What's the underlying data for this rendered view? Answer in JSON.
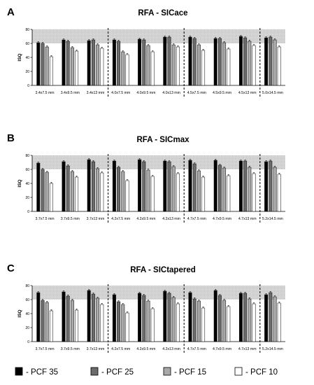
{
  "legend": [
    {
      "label": "- PCF 35",
      "color": "#000000"
    },
    {
      "label": "- PCF 25",
      "color": "#6b6b6b"
    },
    {
      "label": "- PCF 15",
      "color": "#a9a9a9"
    },
    {
      "label": "- PCF 10",
      "color": "#ffffff"
    }
  ],
  "chart_data": [
    {
      "type": "bar",
      "panel": "A",
      "title": "RFA - SICace",
      "ylabel": "ISQ",
      "ylim": [
        0,
        80
      ],
      "yticks": [
        0,
        20,
        40,
        60,
        80
      ],
      "shaded_band": [
        60,
        80
      ],
      "dashed_separators_after": [
        2,
        5,
        8
      ],
      "categories": [
        "3.4x7.5 mm",
        "3.4x9.5 mm",
        "3.4x13 mm",
        "4.0x7.5 mm",
        "4.0x9.5 mm",
        "4.0x13 mm",
        "4.5x7.5 mm",
        "4.5x9.5 mm",
        "4.5x13 mm",
        "5.0x14.5 mm"
      ],
      "series": [
        {
          "name": "- PCF 35",
          "values": [
            61,
            65,
            64,
            65,
            66,
            69,
            69,
            67,
            70,
            68
          ]
        },
        {
          "name": "- PCF 25",
          "values": [
            60,
            63,
            65,
            63,
            65,
            69,
            67,
            67,
            68,
            69
          ]
        },
        {
          "name": "- PCF 15",
          "values": [
            55,
            54,
            58,
            48,
            57,
            58,
            58,
            61,
            63,
            65
          ]
        },
        {
          "name": "- PCF 10",
          "values": [
            41,
            49,
            53,
            44,
            48,
            55,
            50,
            52,
            57,
            55
          ]
        }
      ]
    },
    {
      "type": "bar",
      "panel": "B",
      "title": "RFA - SICmax",
      "ylabel": "ISQ",
      "ylim": [
        0,
        80
      ],
      "yticks": [
        0,
        20,
        40,
        60,
        80
      ],
      "shaded_band": [
        60,
        80
      ],
      "dashed_separators_after": [
        2,
        5,
        8
      ],
      "categories": [
        "3.7x7.5 mm",
        "3.7x9.5 mm",
        "3.7x13 mm",
        "4.2x7.5 mm",
        "4.2x9.5 mm",
        "4.2x13 mm",
        "4.7x7.5 mm",
        "4.7x9.5 mm",
        "4.7x13 mm",
        "5.2x14.5 mm"
      ],
      "series": [
        {
          "name": "- PCF 35",
          "values": [
            69,
            71,
            74,
            72,
            74,
            72,
            73,
            73,
            72,
            71
          ]
        },
        {
          "name": "- PCF 25",
          "values": [
            60,
            65,
            71,
            63,
            71,
            71,
            68,
            66,
            72,
            72
          ]
        },
        {
          "name": "- PCF 15",
          "values": [
            56,
            57,
            61,
            57,
            59,
            64,
            58,
            62,
            63,
            63
          ]
        },
        {
          "name": "- PCF 10",
          "values": [
            40,
            49,
            55,
            44,
            50,
            54,
            49,
            51,
            54,
            53
          ]
        }
      ]
    },
    {
      "type": "bar",
      "panel": "C",
      "title": "RFA - SICtapered",
      "ylabel": "ISQ",
      "ylim": [
        0,
        80
      ],
      "yticks": [
        0,
        20,
        40,
        60,
        80
      ],
      "shaded_band": [
        60,
        80
      ],
      "dashed_separators_after": [
        2,
        5,
        8
      ],
      "categories": [
        "3.7x7.5 mm",
        "3.7x9.5 mm",
        "3.7x13 mm",
        "4.2x7.5 mm",
        "4.2x9.5 mm",
        "4.2x13 mm",
        "4.7x7.5 mm",
        "4.7x9.5 mm",
        "4.7x13 mm",
        "5.2x14.5 mm"
      ],
      "series": [
        {
          "name": "- PCF 35",
          "values": [
            70,
            71,
            73,
            67,
            69,
            72,
            70,
            73,
            69,
            67
          ]
        },
        {
          "name": "- PCF 25",
          "values": [
            59,
            65,
            68,
            57,
            66,
            69,
            61,
            66,
            69,
            70
          ]
        },
        {
          "name": "- PCF 15",
          "values": [
            56,
            59,
            62,
            53,
            58,
            63,
            58,
            59,
            61,
            64
          ]
        },
        {
          "name": "- PCF 10",
          "values": [
            44,
            45,
            53,
            41,
            47,
            54,
            48,
            50,
            54,
            55
          ]
        }
      ]
    }
  ]
}
